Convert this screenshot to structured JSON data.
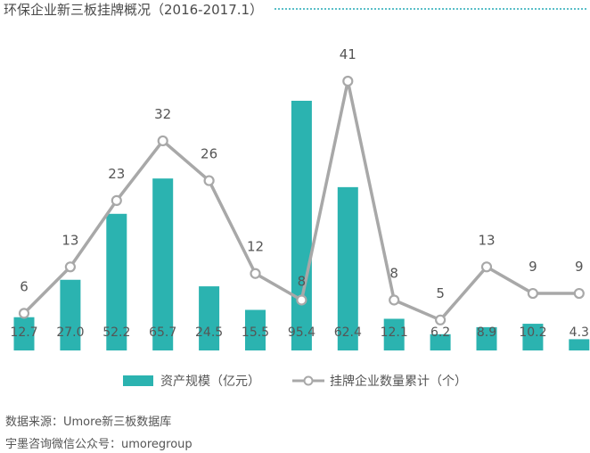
{
  "title": "环保企业新三板挂牌概况（2016-2017.1）",
  "colors": {
    "bar": "#2bb3b0",
    "line": "#a8a8a8",
    "marker_fill": "#ffffff",
    "accent_rule": "#5bbfc8"
  },
  "chart_data": {
    "type": "bar+line",
    "title": "环保企业新三板挂牌概况（2016-2017.1）",
    "categories": [
      "",
      "",
      "",
      "",
      "",
      "",
      "",
      "",
      "",
      "",
      "",
      "",
      ""
    ],
    "series": [
      {
        "name": "资产规模（亿元）",
        "type": "bar",
        "values": [
          12.7,
          27.0,
          52.2,
          65.7,
          24.5,
          15.5,
          95.4,
          62.4,
          12.1,
          6.2,
          8.9,
          10.2,
          4.3
        ],
        "labels": [
          "12.7",
          "27.0",
          "52.2",
          "65.7",
          "24.5",
          "15.5",
          "95.4",
          "62.4",
          "12.1",
          "6.2",
          "8.9",
          "10.2",
          "4.3"
        ]
      },
      {
        "name": "挂牌企业数量累计（个）",
        "type": "line",
        "values": [
          6,
          13,
          23,
          32,
          26,
          12,
          8,
          41,
          8,
          5,
          13,
          9,
          9
        ],
        "labels": [
          "6",
          "13",
          "23",
          "32",
          "26",
          "12",
          "8",
          "41",
          "8",
          "5",
          "13",
          "9",
          "9"
        ]
      }
    ],
    "bar_range": [
      0,
      100
    ],
    "line_range": [
      0,
      45
    ],
    "grid": false,
    "legend_position": "bottom"
  },
  "legend": {
    "bar_label": "资产规模（亿元）",
    "line_label": "挂牌企业数量累计（个）"
  },
  "footer": {
    "source": "数据来源：Umore新三板数据库",
    "wechat": "宇墨咨询微信公众号：umoregroup"
  }
}
